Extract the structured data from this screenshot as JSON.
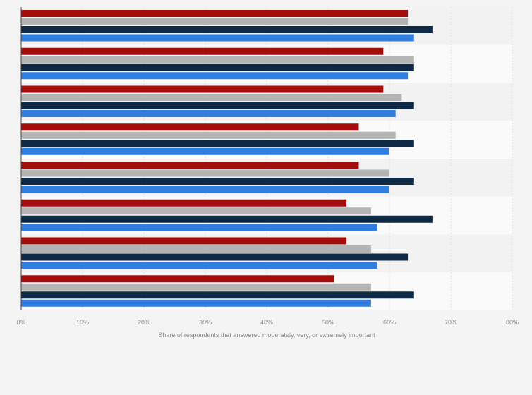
{
  "chart_data": {
    "type": "bar",
    "orientation": "horizontal",
    "categories": [
      "",
      "",
      "",
      "",
      "",
      "",
      "",
      ""
    ],
    "series": [
      {
        "color": "#a50d0d",
        "values": [
          63,
          59,
          59,
          55,
          55,
          53,
          53,
          51
        ]
      },
      {
        "color": "#b4b4b4",
        "values": [
          63,
          64,
          62,
          61,
          60,
          57,
          57,
          57
        ]
      },
      {
        "color": "#0e2a47",
        "values": [
          67,
          64,
          64,
          64,
          64,
          67,
          63,
          64
        ]
      },
      {
        "color": "#2f7ee0",
        "values": [
          64,
          63,
          61,
          60,
          60,
          58,
          58,
          57
        ]
      }
    ],
    "xlim": [
      0,
      80
    ],
    "x_ticks": [
      "0%",
      "10%",
      "20%",
      "30%",
      "40%",
      "50%",
      "60%",
      "70%",
      "80%"
    ],
    "xlabel": "Share of respondents that answered moderately, very, or extremely important",
    "grid": true
  }
}
